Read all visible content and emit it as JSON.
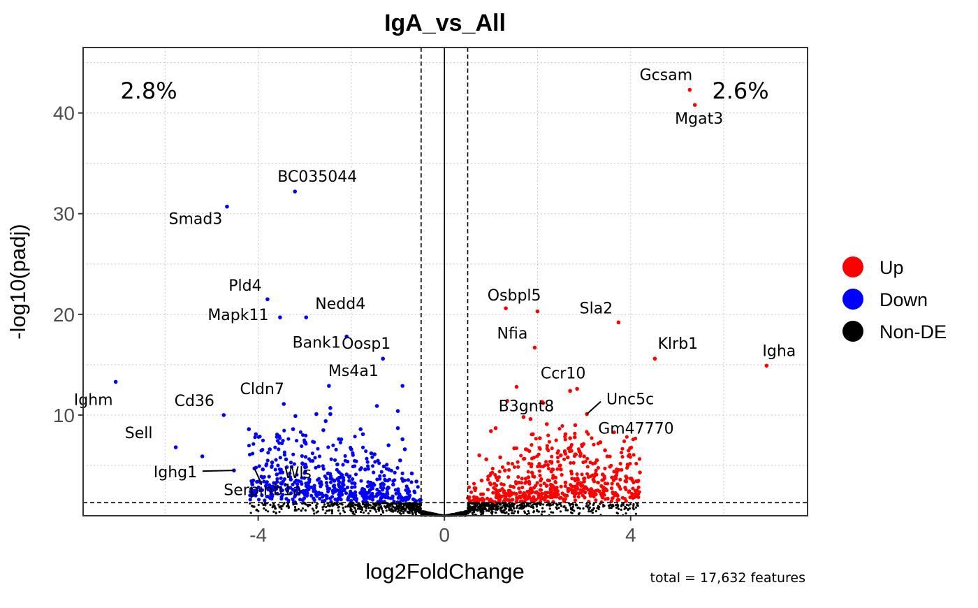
{
  "chart_data": {
    "type": "scatter",
    "title": "IgA_vs_All",
    "xlabel": "log2FoldChange",
    "ylabel": "-log10(padj)",
    "xlim": [
      -7.76,
      7.8
    ],
    "ylim": [
      0,
      46.5
    ],
    "x_ticks": [
      -4,
      0,
      4
    ],
    "x_tick_labels": [
      "-4",
      "0",
      "4"
    ],
    "y_ticks": [
      10,
      20,
      30,
      40
    ],
    "y_tick_labels": [
      "10",
      "20",
      "30",
      "40"
    ],
    "grid": true,
    "thresholds": {
      "log2fc": 0.5,
      "neg_log10_padj": 1.3
    },
    "percent_down": "2.8%",
    "percent_up": "2.6%",
    "caption": "total = 17,632 features",
    "legend": {
      "placement": "right",
      "entries": [
        {
          "label": "Up",
          "color": "#ff0000"
        },
        {
          "label": "Down",
          "color": "#0000ff"
        },
        {
          "label": "Non-DE",
          "color": "#000000"
        }
      ]
    },
    "labeled_genes": [
      {
        "gene": "Gcsam",
        "x": 5.27,
        "y": 42.3,
        "group": "Up"
      },
      {
        "gene": "Mgat3",
        "x": 5.38,
        "y": 40.8,
        "group": "Up"
      },
      {
        "gene": "Osbpl5",
        "x": 1.32,
        "y": 20.6,
        "group": "Up"
      },
      {
        "gene": "Sla2",
        "x": 3.74,
        "y": 19.2,
        "group": "Up"
      },
      {
        "gene": "Nfia",
        "x": 1.94,
        "y": 16.7,
        "group": "Up"
      },
      {
        "gene": "Klrb1",
        "x": 4.52,
        "y": 15.6,
        "group": "Up"
      },
      {
        "gene": "Igha",
        "x": 6.92,
        "y": 14.9,
        "group": "Up"
      },
      {
        "gene": "Ccr10",
        "x": 2.85,
        "y": 12.6,
        "group": "Up"
      },
      {
        "gene": "B3gnt8",
        "x": 2.12,
        "y": 11.2,
        "group": "Up"
      },
      {
        "gene": "Unc5c",
        "x": 3.06,
        "y": 10.1,
        "group": "Up"
      },
      {
        "gene": "Gm47770",
        "x": 2.81,
        "y": 9.0,
        "group": "Up"
      },
      {
        "gene": "BC035044",
        "x": -3.21,
        "y": 32.2,
        "group": "Down"
      },
      {
        "gene": "Smad3",
        "x": -4.67,
        "y": 30.7,
        "group": "Down"
      },
      {
        "gene": "Pld4",
        "x": -3.8,
        "y": 21.5,
        "group": "Down"
      },
      {
        "gene": "Mapk11",
        "x": -3.53,
        "y": 19.7,
        "group": "Down"
      },
      {
        "gene": "Nedd4",
        "x": -2.97,
        "y": 19.7,
        "group": "Down"
      },
      {
        "gene": "Bank1",
        "x": -2.1,
        "y": 17.8,
        "group": "Down"
      },
      {
        "gene": "Oosp1",
        "x": -1.32,
        "y": 15.6,
        "group": "Down"
      },
      {
        "gene": "Ms4a1",
        "x": -2.48,
        "y": 12.9,
        "group": "Down"
      },
      {
        "gene": "Ighm",
        "x": -7.06,
        "y": 13.3,
        "group": "Down"
      },
      {
        "gene": "Cldn7",
        "x": -3.45,
        "y": 11.1,
        "group": "Down"
      },
      {
        "gene": "Cd36",
        "x": -4.74,
        "y": 10.0,
        "group": "Down"
      },
      {
        "gene": "Sell",
        "x": -5.77,
        "y": 6.8,
        "group": "Down"
      },
      {
        "gene": "Ighg1",
        "x": -4.52,
        "y": 4.5,
        "group": "Down"
      },
      {
        "gene": "Serpinb1a",
        "x": -4.08,
        "y": 4.7,
        "group": "Down"
      },
      {
        "gene": "Wls",
        "x": -3.48,
        "y": 4.3,
        "group": "Down"
      }
    ],
    "other_up": [
      [
        2.0,
        20.3
      ],
      [
        1.55,
        12.8
      ],
      [
        1.35,
        11.4
      ],
      [
        2.1,
        11.3
      ],
      [
        2.7,
        12.4
      ],
      [
        1.7,
        9.8
      ],
      [
        1.85,
        9.6
      ],
      [
        2.2,
        9.1
      ],
      [
        1.0,
        8.4
      ],
      [
        1.1,
        8.7
      ],
      [
        1.9,
        8.1
      ],
      [
        2.05,
        7.7
      ],
      [
        2.6,
        8.1
      ],
      [
        2.7,
        7.7
      ],
      [
        2.8,
        7.8
      ],
      [
        3.35,
        7.3
      ],
      [
        3.45,
        6.5
      ],
      [
        1.5,
        6.7
      ],
      [
        1.75,
        6.6
      ],
      [
        2.5,
        6.0
      ],
      [
        2.65,
        5.8
      ],
      [
        3.5,
        5.9
      ],
      [
        0.75,
        6.0
      ],
      [
        0.9,
        5.6
      ],
      [
        1.2,
        5.8
      ],
      [
        2.9,
        6.4
      ],
      [
        3.0,
        5.9
      ],
      [
        2.3,
        4.4
      ],
      [
        2.5,
        4.6
      ],
      [
        3.4,
        4.1
      ],
      [
        3.7,
        4.3
      ],
      [
        3.9,
        3.9
      ],
      [
        4.2,
        4.3
      ],
      [
        3.2,
        3.6
      ],
      [
        3.0,
        3.4
      ],
      [
        2.6,
        3.3
      ],
      [
        2.2,
        3.0
      ],
      [
        1.8,
        3.8
      ],
      [
        1.3,
        4.5
      ],
      [
        1.0,
        4.2
      ],
      [
        0.8,
        3.5
      ],
      [
        1.6,
        3.3
      ],
      [
        2.8,
        2.9
      ],
      [
        3.6,
        3.8
      ],
      [
        4.0,
        3.7
      ]
    ],
    "other_down": [
      [
        -5.2,
        5.9
      ],
      [
        -4.2,
        8.6
      ],
      [
        -4.05,
        8.1
      ],
      [
        -3.75,
        6.6
      ],
      [
        -3.55,
        7.9
      ],
      [
        -3.2,
        9.9
      ],
      [
        -3.25,
        8.6
      ],
      [
        -3.0,
        7.3
      ],
      [
        -2.75,
        10.1
      ],
      [
        -2.6,
        8.5
      ],
      [
        -2.55,
        9.4
      ],
      [
        -2.45,
        10.1
      ],
      [
        -2.45,
        10.7
      ],
      [
        -1.8,
        8.6
      ],
      [
        -1.75,
        8.1
      ],
      [
        -1.0,
        8.7
      ],
      [
        -0.85,
        6.6
      ],
      [
        -0.9,
        7.6
      ],
      [
        -1.2,
        7.0
      ],
      [
        -1.5,
        6.1
      ],
      [
        -2.0,
        6.6
      ],
      [
        -2.3,
        5.1
      ],
      [
        -2.7,
        4.9
      ],
      [
        -3.05,
        5.2
      ],
      [
        -3.4,
        5.6
      ],
      [
        -3.7,
        5.3
      ],
      [
        -3.9,
        4.6
      ],
      [
        -3.6,
        4.1
      ],
      [
        -3.3,
        3.6
      ],
      [
        -2.9,
        3.6
      ],
      [
        -2.5,
        4.2
      ],
      [
        -2.1,
        4.1
      ],
      [
        -1.7,
        4.6
      ],
      [
        -1.3,
        4.9
      ],
      [
        -0.95,
        5.5
      ],
      [
        -0.7,
        4.2
      ],
      [
        -0.6,
        3.4
      ],
      [
        -1.1,
        3.1
      ],
      [
        -1.6,
        3.0
      ],
      [
        -2.2,
        2.8
      ],
      [
        -2.8,
        2.6
      ],
      [
        -0.9,
        12.9
      ],
      [
        -1.45,
        10.9
      ],
      [
        -1.0,
        10.4
      ]
    ]
  }
}
